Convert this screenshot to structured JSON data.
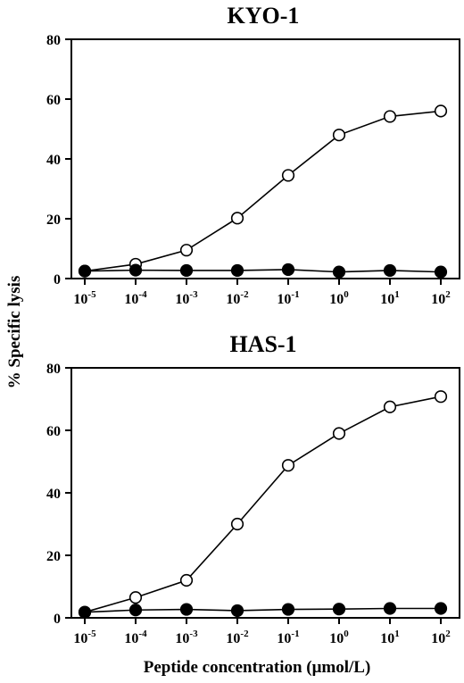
{
  "chart_data": [
    {
      "type": "line",
      "title": "KYO-1",
      "xscale": "log",
      "x": [
        "10-5",
        "10-4",
        "10-3",
        "10-2",
        "10-1",
        "100",
        "101",
        "102"
      ],
      "x_ticks": [
        {
          "base": "10",
          "exp": "-5"
        },
        {
          "base": "10",
          "exp": "-4"
        },
        {
          "base": "10",
          "exp": "-3"
        },
        {
          "base": "10",
          "exp": "-2"
        },
        {
          "base": "10",
          "exp": "-1"
        },
        {
          "base": "10",
          "exp": "0"
        },
        {
          "base": "10",
          "exp": "1"
        },
        {
          "base": "10",
          "exp": "2"
        }
      ],
      "y_ticks": [
        "0",
        "20",
        "40",
        "60",
        "80"
      ],
      "ylim": [
        0,
        80
      ],
      "series": [
        {
          "marker": "open-circle",
          "values": [
            2.5,
            4.8,
            9.5,
            20.2,
            34.5,
            48.0,
            54.2,
            56.0
          ]
        },
        {
          "marker": "filled-circle",
          "values": [
            2.5,
            2.8,
            2.7,
            2.7,
            3.0,
            2.2,
            2.7,
            2.2
          ]
        }
      ]
    },
    {
      "type": "line",
      "title": "HAS-1",
      "xscale": "log",
      "x": [
        "10-5",
        "10-4",
        "10-3",
        "10-2",
        "10-1",
        "100",
        "101",
        "102"
      ],
      "x_ticks": [
        {
          "base": "10",
          "exp": "-5"
        },
        {
          "base": "10",
          "exp": "-4"
        },
        {
          "base": "10",
          "exp": "-3"
        },
        {
          "base": "10",
          "exp": "-2"
        },
        {
          "base": "10",
          "exp": "-1"
        },
        {
          "base": "10",
          "exp": "0"
        },
        {
          "base": "10",
          "exp": "1"
        },
        {
          "base": "10",
          "exp": "2"
        }
      ],
      "y_ticks": [
        "0",
        "20",
        "40",
        "60",
        "80"
      ],
      "ylim": [
        0,
        80
      ],
      "series": [
        {
          "marker": "open-circle",
          "values": [
            1.8,
            6.5,
            12.0,
            30.0,
            48.8,
            59.0,
            67.5,
            70.8
          ]
        },
        {
          "marker": "filled-circle",
          "values": [
            1.8,
            2.5,
            2.7,
            2.3,
            2.7,
            2.8,
            3.0,
            3.0
          ]
        }
      ]
    }
  ],
  "ylabel": "% Specific lysis",
  "xlabel": "Peptide concentration (μmol/L)",
  "colors": {
    "ink": "#000000",
    "background": "#ffffff"
  }
}
